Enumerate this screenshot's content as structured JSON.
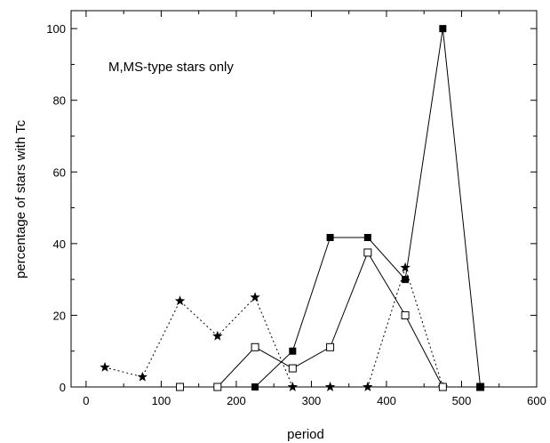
{
  "chart_data": {
    "type": "line",
    "title": "",
    "xlabel": "period",
    "ylabel": "percentage of stars with Tc",
    "xlim": [
      -20,
      600
    ],
    "ylim": [
      0,
      105
    ],
    "xticks": [
      0,
      100,
      200,
      300,
      400,
      500,
      600
    ],
    "yticks": [
      0,
      20,
      40,
      60,
      80,
      100
    ],
    "xtick_labels": [
      "0",
      "100",
      "200",
      "300",
      "400",
      "500",
      "600"
    ],
    "ytick_labels": [
      "0",
      "20",
      "40",
      "60",
      "80",
      "100"
    ],
    "grid": false,
    "annotation": "M,MS-type stars only",
    "series": [
      {
        "marker": "star",
        "line_style": "dotted",
        "color": "#000000",
        "points": [
          [
            25,
            5.5
          ],
          [
            75,
            2.8
          ],
          [
            125,
            24
          ],
          [
            175,
            14.2
          ],
          [
            225,
            25
          ],
          [
            275,
            0
          ],
          [
            325,
            0
          ],
          [
            375,
            0
          ],
          [
            425,
            33.3
          ],
          [
            475,
            0
          ]
        ]
      },
      {
        "marker": "open-square",
        "line_style": "solid",
        "color": "#000000",
        "points": [
          [
            125,
            0
          ],
          [
            175,
            0
          ],
          [
            225,
            11.1
          ],
          [
            275,
            5.2
          ],
          [
            325,
            11.1
          ],
          [
            375,
            37.5
          ],
          [
            425,
            20
          ],
          [
            475,
            0
          ],
          [
            525,
            0
          ]
        ]
      },
      {
        "marker": "filled-square",
        "line_style": "solid",
        "color": "#000000",
        "points": [
          [
            225,
            0
          ],
          [
            275,
            10
          ],
          [
            325,
            41.7
          ],
          [
            375,
            41.7
          ],
          [
            425,
            30
          ],
          [
            475,
            100
          ],
          [
            525,
            0
          ]
        ]
      }
    ]
  }
}
